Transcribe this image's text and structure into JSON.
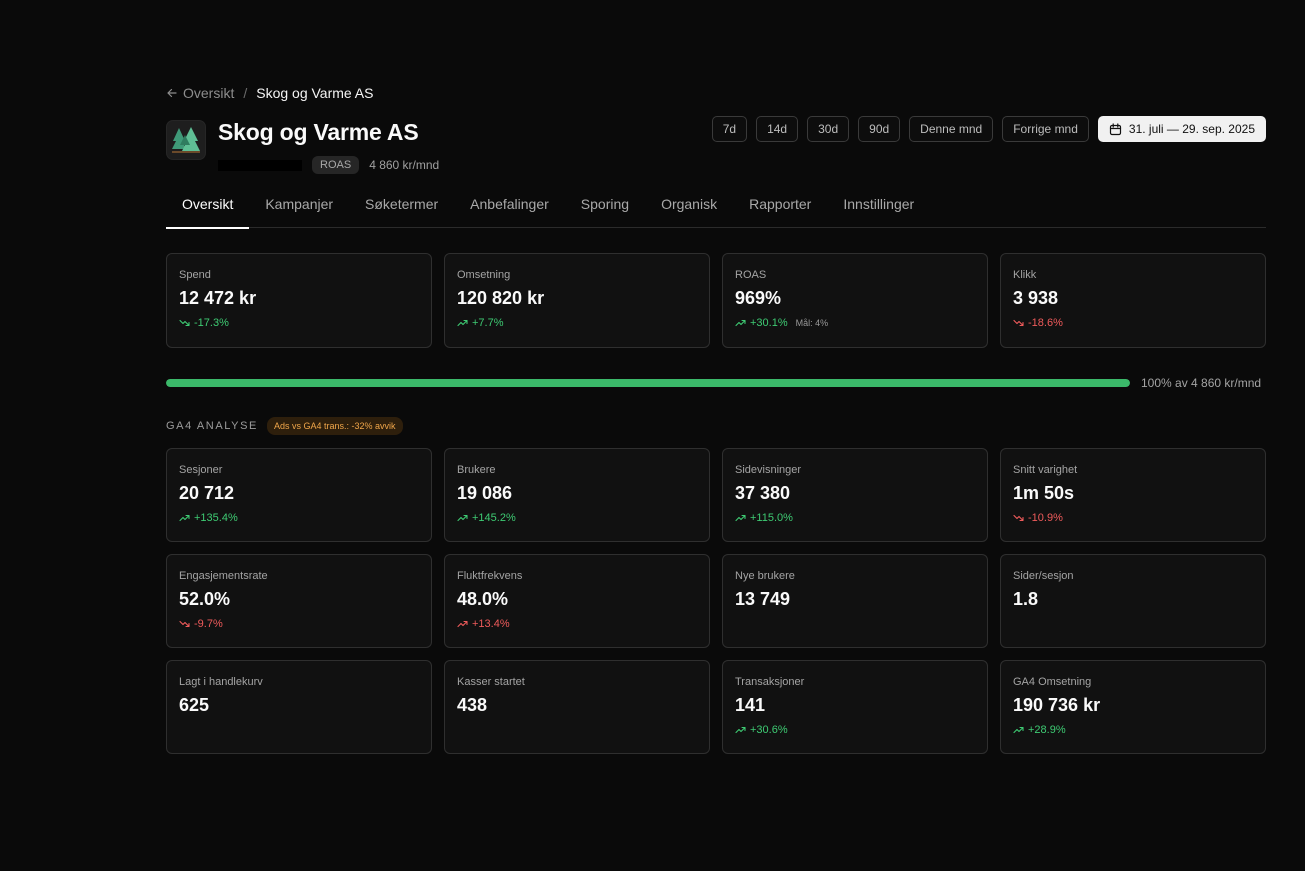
{
  "breadcrumb": {
    "back_label": "Oversikt",
    "separator": "/",
    "current": "Skog og Varme AS"
  },
  "header": {
    "title": "Skog og Varme AS",
    "logo_icon": "forest-trees-icon",
    "badge": "ROAS",
    "budget": "4 860 kr/mnd"
  },
  "date_ranges": [
    "7d",
    "14d",
    "30d",
    "90d",
    "Denne mnd",
    "Forrige mnd"
  ],
  "date_picker": {
    "label": "31. juli — 29. sep. 2025",
    "icon": "calendar-icon"
  },
  "tabs": [
    {
      "label": "Oversikt",
      "active": true
    },
    {
      "label": "Kampanjer"
    },
    {
      "label": "Søketermer"
    },
    {
      "label": "Anbefalinger"
    },
    {
      "label": "Sporing"
    },
    {
      "label": "Organisk"
    },
    {
      "label": "Rapporter"
    },
    {
      "label": "Innstillinger"
    }
  ],
  "kpis": [
    {
      "label": "Spend",
      "value": "12 472 kr",
      "delta": "-17.3%",
      "trend": "down",
      "tone": "good"
    },
    {
      "label": "Omsetning",
      "value": "120 820 kr",
      "delta": "+7.7%",
      "trend": "up",
      "tone": "good"
    },
    {
      "label": "ROAS",
      "value": "969%",
      "delta": "+30.1%",
      "trend": "up",
      "tone": "good",
      "goal": "Mål: 4%"
    },
    {
      "label": "Klikk",
      "value": "3 938",
      "delta": "-18.6%",
      "trend": "down",
      "tone": "bad"
    }
  ],
  "budget_progress": {
    "percent": 100,
    "label": "100% av 4 860 kr/mnd"
  },
  "ga4": {
    "title": "GA4 ANALYSE",
    "warning": "Ads vs GA4 trans.: -32% avvik",
    "cards": [
      {
        "label": "Sesjoner",
        "value": "20 712",
        "delta": "+135.4%",
        "trend": "up",
        "tone": "good"
      },
      {
        "label": "Brukere",
        "value": "19 086",
        "delta": "+145.2%",
        "trend": "up",
        "tone": "good"
      },
      {
        "label": "Sidevisninger",
        "value": "37 380",
        "delta": "+115.0%",
        "trend": "up",
        "tone": "good"
      },
      {
        "label": "Snitt varighet",
        "value": "1m 50s",
        "delta": "-10.9%",
        "trend": "down",
        "tone": "bad"
      },
      {
        "label": "Engasjementsrate",
        "value": "52.0%",
        "delta": "-9.7%",
        "trend": "down",
        "tone": "bad"
      },
      {
        "label": "Fluktfrekvens",
        "value": "48.0%",
        "delta": "+13.4%",
        "trend": "up",
        "tone": "bad"
      },
      {
        "label": "Nye brukere",
        "value": "13 749",
        "delta": "",
        "trend": "",
        "tone": ""
      },
      {
        "label": "Sider/sesjon",
        "value": "1.8",
        "delta": "",
        "trend": "",
        "tone": ""
      },
      {
        "label": "Lagt i handlekurv",
        "value": "625",
        "delta": "",
        "trend": "",
        "tone": ""
      },
      {
        "label": "Kasser startet",
        "value": "438",
        "delta": "",
        "trend": "",
        "tone": ""
      },
      {
        "label": "Transaksjoner",
        "value": "141",
        "delta": "+30.6%",
        "trend": "up",
        "tone": "good"
      },
      {
        "label": "GA4 Omsetning",
        "value": "190 736 kr",
        "delta": "+28.9%",
        "trend": "up",
        "tone": "good"
      }
    ]
  },
  "colors": {
    "positive": "#3ecb73",
    "negative": "#ef5b5b",
    "progress": "#3bb96a",
    "warning": "#f0a64a"
  }
}
